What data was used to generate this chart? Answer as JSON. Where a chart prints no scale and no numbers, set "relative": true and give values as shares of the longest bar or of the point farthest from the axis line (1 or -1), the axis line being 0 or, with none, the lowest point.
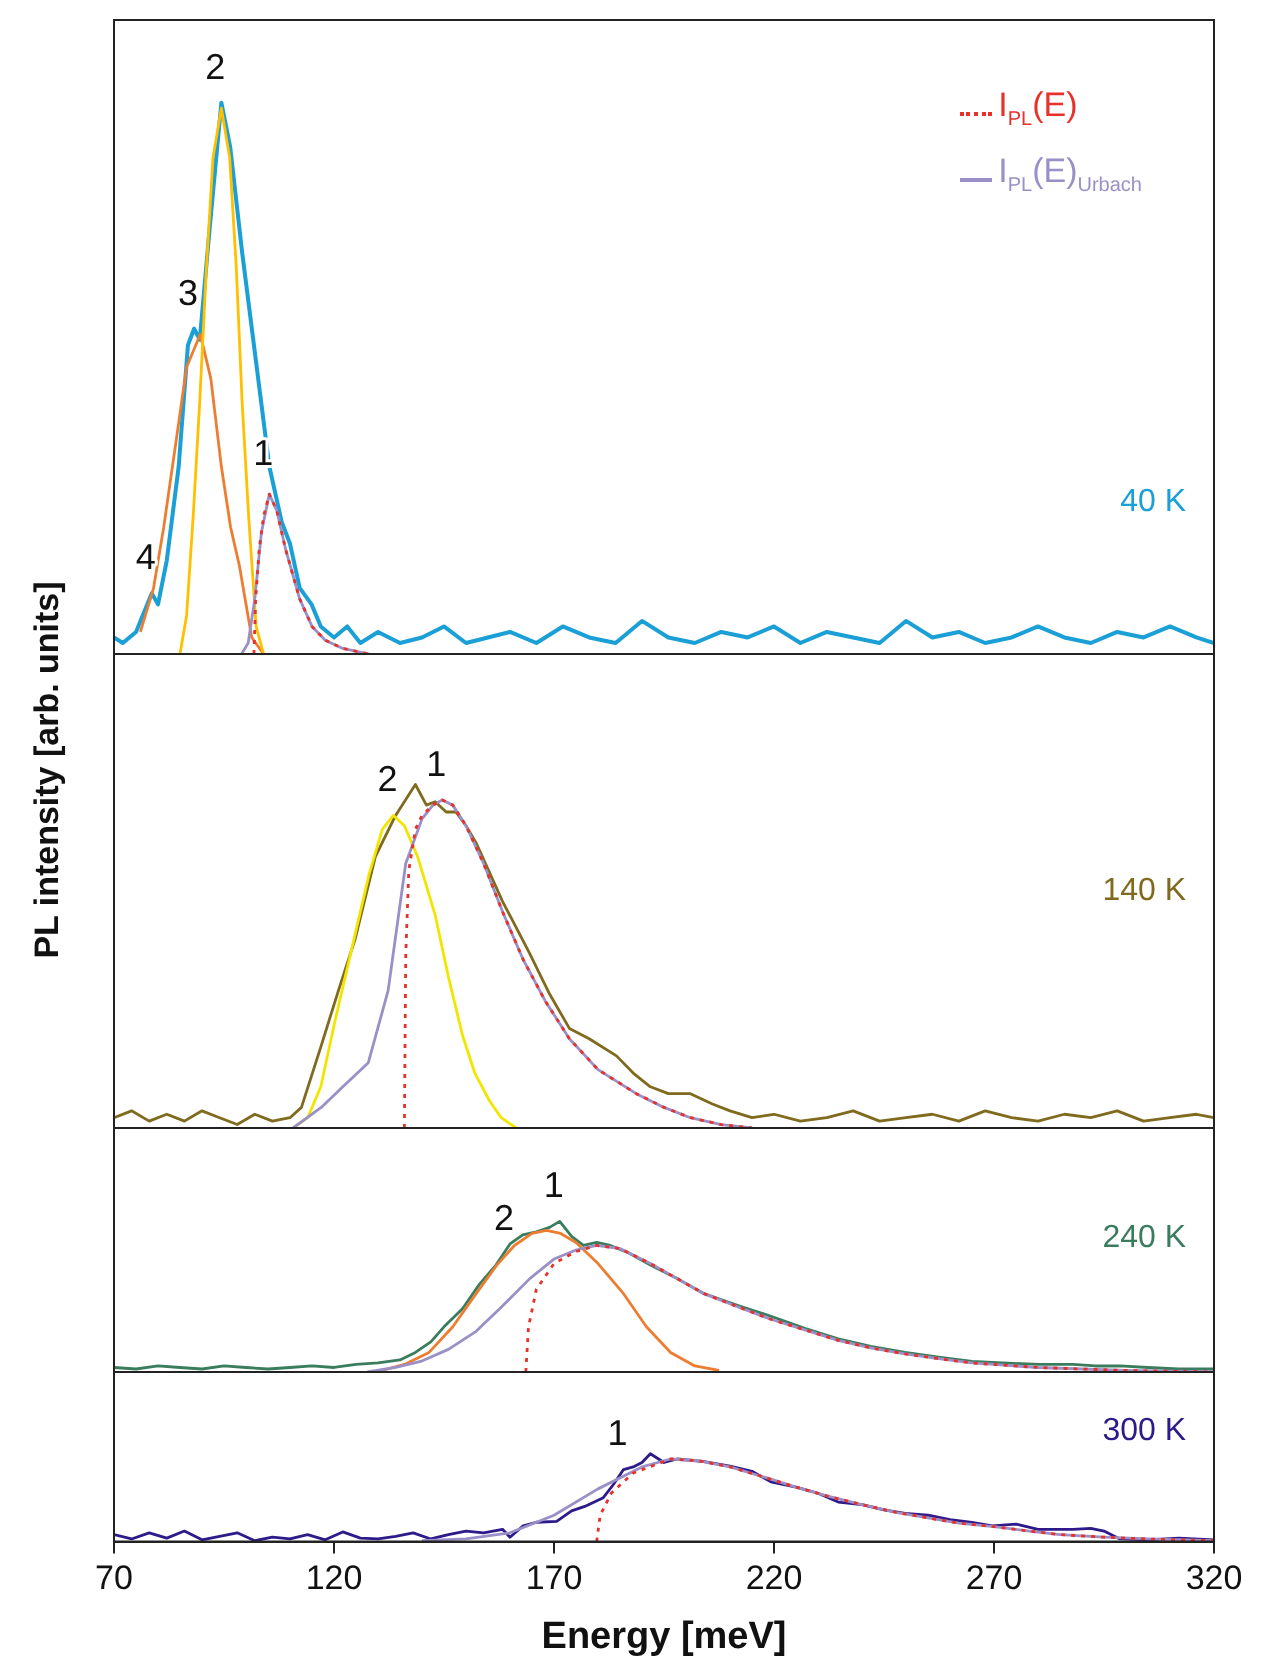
{
  "chart_data": [
    {
      "type": "line",
      "relative": true,
      "ylabel": "PL intensity [arb. units]",
      "xlim": [
        70,
        320
      ],
      "xticks": [
        70,
        120,
        170,
        220,
        270,
        320
      ],
      "tick_labels": false,
      "legend": "top right",
      "annotations": [
        {
          "text": "4",
          "x": 78.6,
          "y": 0.11
        },
        {
          "text": "3",
          "x": 88.2,
          "y": 0.59
        },
        {
          "text": "2",
          "x": 94.4,
          "y": 1.0
        },
        {
          "text": "1",
          "x": 105.3,
          "y": 0.3
        },
        "40 K"
      ],
      "series": [
        {
          "color": "#1a9fd6",
          "x": [
            70,
            72,
            75,
            78.6,
            80,
            82,
            84.7,
            86.8,
            88.2,
            89.5,
            91.6,
            94.4,
            96.4,
            99.1,
            102.6,
            105.3,
            108.1,
            110,
            112.2,
            114.9,
            117,
            120,
            123,
            126,
            130,
            135,
            140,
            145,
            150,
            155,
            160,
            166,
            172,
            178,
            184,
            190,
            196,
            202,
            208,
            214,
            220,
            226,
            232,
            238,
            244,
            250,
            256,
            262,
            268,
            274,
            280,
            286,
            292,
            298,
            304,
            310,
            316,
            320
          ],
          "values": [
            0.03,
            0.02,
            0.04,
            0.11,
            0.09,
            0.17,
            0.34,
            0.56,
            0.59,
            0.57,
            0.76,
            1.0,
            0.92,
            0.73,
            0.51,
            0.34,
            0.24,
            0.2,
            0.12,
            0.09,
            0.05,
            0.03,
            0.05,
            0.02,
            0.04,
            0.02,
            0.03,
            0.05,
            0.02,
            0.03,
            0.04,
            0.02,
            0.05,
            0.03,
            0.02,
            0.06,
            0.03,
            0.02,
            0.04,
            0.03,
            0.05,
            0.02,
            0.04,
            0.03,
            0.02,
            0.06,
            0.03,
            0.04,
            0.02,
            0.03,
            0.05,
            0.03,
            0.02,
            0.04,
            0.03,
            0.05,
            0.03,
            0.02
          ]
        },
        {
          "color": "#ed7d31",
          "x": [
            76,
            79,
            81.3,
            84,
            86.5,
            89.6,
            92,
            94.4,
            96.5,
            98.5,
            101.3,
            104
          ],
          "values": [
            0.04,
            0.12,
            0.23,
            0.38,
            0.52,
            0.58,
            0.5,
            0.34,
            0.23,
            0.16,
            0.03,
            0.0
          ]
        },
        {
          "color": "#ffc000",
          "x": [
            85,
            86.5,
            88,
            89.5,
            91,
            92.5,
            94.4,
            96.3,
            97.8,
            99.1,
            100.6,
            102.3,
            104
          ],
          "values": [
            0,
            0.07,
            0.25,
            0.46,
            0.7,
            0.9,
            0.99,
            0.9,
            0.7,
            0.46,
            0.25,
            0.05,
            0
          ]
        },
        {
          "name": "I$_{PL}$(E)$_{Urbach}$",
          "color": "#9b8fc8",
          "x": [
            99,
            100.5,
            102,
            103.5,
            105.3,
            107,
            109,
            112.2,
            115,
            118,
            122,
            128
          ],
          "values": [
            0,
            0.02,
            0.1,
            0.22,
            0.29,
            0.26,
            0.19,
            0.1,
            0.05,
            0.025,
            0.01,
            0
          ]
        },
        {
          "name": "I$_{PL}$(E)",
          "color": "#e8312a",
          "line_style": "dotted",
          "x": [
            101.8,
            102.2,
            103,
            104,
            105.3,
            107,
            109,
            112.2,
            115,
            118,
            122,
            128
          ],
          "values": [
            0,
            0.1,
            0.19,
            0.25,
            0.29,
            0.26,
            0.19,
            0.1,
            0.05,
            0.025,
            0.01,
            0
          ]
        }
      ]
    },
    {
      "type": "line",
      "relative": true,
      "xlim": [
        70,
        320
      ],
      "xticks": [
        70,
        120,
        170,
        220,
        270,
        320
      ],
      "tick_labels": false,
      "annotations": [
        {
          "text": "2",
          "x": 133.5,
          "y": 0.91
        },
        {
          "text": "1",
          "x": 144.6,
          "y": 0.955
        },
        "140 K"
      ],
      "series": [
        {
          "color": "#7f6a1e",
          "x": [
            70,
            74,
            78,
            82,
            86,
            90,
            94,
            98,
            102,
            106,
            110,
            112.6,
            117.1,
            121,
            124.8,
            129.4,
            134,
            138.5,
            141,
            143,
            145.5,
            147.7,
            150,
            152.3,
            158.3,
            164.4,
            169,
            173.5,
            178,
            184.2,
            188,
            191.9,
            196,
            201,
            206,
            210,
            215,
            220,
            226,
            232,
            238,
            244,
            250,
            256,
            262,
            268,
            274,
            280,
            286,
            292,
            298,
            304,
            310,
            316,
            320
          ],
          "values": [
            0.03,
            0.05,
            0.02,
            0.04,
            0.02,
            0.05,
            0.03,
            0.01,
            0.04,
            0.02,
            0.03,
            0.06,
            0.24,
            0.4,
            0.55,
            0.79,
            0.91,
            1.0,
            0.94,
            0.95,
            0.92,
            0.92,
            0.88,
            0.83,
            0.66,
            0.51,
            0.39,
            0.29,
            0.26,
            0.21,
            0.16,
            0.12,
            0.1,
            0.1,
            0.07,
            0.05,
            0.03,
            0.04,
            0.02,
            0.03,
            0.05,
            0.02,
            0.03,
            0.04,
            0.02,
            0.05,
            0.03,
            0.02,
            0.04,
            0.03,
            0.05,
            0.02,
            0.03,
            0.04,
            0.03
          ]
        },
        {
          "color": "#f2e600",
          "x": [
            110.7,
            114,
            117,
            120.2,
            124,
            128,
            131,
            133.5,
            136,
            139,
            143,
            146,
            149.2,
            152,
            155.3,
            158,
            161.4
          ],
          "values": [
            0,
            0.03,
            0.12,
            0.31,
            0.52,
            0.74,
            0.87,
            0.91,
            0.88,
            0.79,
            0.62,
            0.44,
            0.27,
            0.16,
            0.08,
            0.03,
            0
          ]
        },
        {
          "color": "#9b8fc8",
          "x": [
            110.7,
            117.1,
            122,
            127.8,
            132.3,
            136.3,
            140,
            142.5,
            144.6,
            147,
            150,
            154,
            158.3,
            163,
            168,
            173.5,
            180,
            188.7,
            195,
            201,
            208,
            215
          ],
          "values": [
            0,
            0.06,
            0.12,
            0.19,
            0.4,
            0.77,
            0.9,
            0.94,
            0.955,
            0.94,
            0.88,
            0.77,
            0.63,
            0.49,
            0.37,
            0.26,
            0.17,
            0.1,
            0.06,
            0.03,
            0.01,
            0
          ]
        },
        {
          "color": "#e8312a",
          "line_style": "dotted",
          "x": [
            136,
            136.3,
            137,
            138.5,
            140,
            142.5,
            144.6,
            147,
            150,
            154,
            158.3,
            163,
            168,
            173.5,
            180,
            188.7,
            195,
            201,
            208,
            215
          ],
          "values": [
            0,
            0.5,
            0.75,
            0.87,
            0.91,
            0.94,
            0.955,
            0.94,
            0.88,
            0.77,
            0.63,
            0.49,
            0.37,
            0.26,
            0.17,
            0.1,
            0.06,
            0.03,
            0.01,
            0
          ]
        }
      ]
    },
    {
      "type": "line",
      "relative": true,
      "xlim": [
        70,
        320
      ],
      "xticks": [
        70,
        120,
        170,
        220,
        270,
        320
      ],
      "tick_labels": false,
      "annotations": [
        {
          "text": "2",
          "x": 160,
          "y": 0.78
        },
        {
          "text": "1",
          "x": 171.3,
          "y": 1.0
        },
        "240 K"
      ],
      "series": [
        {
          "color": "#3a7d5e",
          "x": [
            70,
            75,
            80,
            85,
            90,
            95,
            100,
            105,
            110,
            115,
            120,
            125,
            130,
            135,
            138.5,
            142,
            145,
            149.2,
            153,
            156.8,
            160,
            162.9,
            166,
            169,
            171.3,
            174,
            176.7,
            179.7,
            182.8,
            187,
            191.9,
            198,
            204.1,
            212,
            219.3,
            227,
            234.6,
            242,
            249.8,
            257,
            265,
            272,
            280.3,
            288,
            293,
            298.6,
            305,
            312,
            320
          ],
          "values": [
            0.03,
            0.02,
            0.04,
            0.03,
            0.02,
            0.04,
            0.03,
            0.02,
            0.03,
            0.04,
            0.03,
            0.05,
            0.06,
            0.08,
            0.13,
            0.2,
            0.3,
            0.42,
            0.58,
            0.71,
            0.85,
            0.91,
            0.93,
            0.96,
            1.0,
            0.9,
            0.84,
            0.86,
            0.84,
            0.79,
            0.71,
            0.62,
            0.52,
            0.44,
            0.37,
            0.29,
            0.22,
            0.17,
            0.13,
            0.1,
            0.07,
            0.06,
            0.05,
            0.05,
            0.04,
            0.04,
            0.03,
            0.02,
            0.02
          ]
        },
        {
          "color": "#ed7d31",
          "x": [
            130.9,
            136,
            141.6,
            147,
            152.3,
            157,
            161,
            165,
            168.3,
            171.5,
            175,
            180,
            185.8,
            191,
            196.5,
            202,
            207.5
          ],
          "values": [
            0.01,
            0.05,
            0.13,
            0.3,
            0.52,
            0.71,
            0.84,
            0.92,
            0.94,
            0.92,
            0.86,
            0.72,
            0.52,
            0.3,
            0.13,
            0.04,
            0.01
          ]
        },
        {
          "color": "#9b8fc8",
          "x": [
            127.6,
            134,
            139.7,
            146,
            152.3,
            158,
            164.5,
            170,
            175,
            179.7,
            185,
            191.9,
            198,
            204.1,
            212,
            219.3,
            227,
            234.6,
            242,
            249.8,
            257,
            265,
            280,
            300,
            320
          ],
          "values": [
            0,
            0.03,
            0.07,
            0.15,
            0.27,
            0.43,
            0.62,
            0.75,
            0.81,
            0.84,
            0.82,
            0.72,
            0.62,
            0.52,
            0.43,
            0.35,
            0.28,
            0.21,
            0.16,
            0.12,
            0.09,
            0.06,
            0.03,
            0.01,
            0
          ]
        },
        {
          "color": "#e8312a",
          "line_style": "dotted",
          "x": [
            163.6,
            164.2,
            166,
            170,
            175,
            179.7,
            185,
            191.9,
            198,
            204.1,
            212,
            219.3,
            227,
            234.6,
            242,
            249.8,
            257,
            265,
            280,
            300,
            320
          ],
          "values": [
            0,
            0.3,
            0.55,
            0.72,
            0.8,
            0.84,
            0.82,
            0.72,
            0.62,
            0.52,
            0.43,
            0.35,
            0.28,
            0.21,
            0.16,
            0.12,
            0.09,
            0.06,
            0.03,
            0.01,
            0
          ]
        }
      ]
    },
    {
      "type": "line",
      "relative": true,
      "xlabel": "Energy [meV]",
      "xlim": [
        70,
        320
      ],
      "xticks": [
        70,
        120,
        170,
        220,
        270,
        320
      ],
      "tick_labels": "x",
      "annotations": [
        {
          "text": "1",
          "x": 185.8,
          "y": 0.82
        },
        "300 K"
      ],
      "series": [
        {
          "color": "#2e1a8a",
          "x": [
            70,
            74,
            78,
            82,
            86,
            90,
            94,
            98,
            102,
            106,
            110,
            114,
            118,
            122,
            126,
            130,
            134,
            138,
            142,
            146,
            150,
            154,
            158.3,
            160,
            163,
            166,
            170.6,
            174,
            177,
            181.2,
            183.5,
            185.8,
            188,
            190,
            191.9,
            195,
            198,
            204.1,
            210,
            215,
            219.3,
            225,
            230,
            234.6,
            240,
            245,
            249.8,
            255,
            260,
            265,
            269.6,
            275,
            280,
            287.9,
            292,
            295,
            298.6,
            305,
            312,
            320
          ],
          "values": [
            0.08,
            0.03,
            0.1,
            0.04,
            0.12,
            0.02,
            0.06,
            0.1,
            0.01,
            0.05,
            0.03,
            0.08,
            0.02,
            0.11,
            0.04,
            0.03,
            0.06,
            0.1,
            0.03,
            0.08,
            0.12,
            0.1,
            0.14,
            0.05,
            0.18,
            0.22,
            0.23,
            0.35,
            0.4,
            0.5,
            0.65,
            0.82,
            0.85,
            0.9,
            1.0,
            0.9,
            0.94,
            0.91,
            0.86,
            0.8,
            0.68,
            0.62,
            0.55,
            0.45,
            0.42,
            0.36,
            0.32,
            0.3,
            0.25,
            0.22,
            0.18,
            0.2,
            0.14,
            0.14,
            0.15,
            0.12,
            0.03,
            0.02,
            0.04,
            0.02
          ]
        },
        {
          "color": "#9b8fc8",
          "x": [
            140,
            150,
            160,
            170,
            180,
            190,
            196.5,
            203,
            210,
            218,
            225,
            232,
            240,
            248,
            255,
            262,
            270,
            278,
            285,
            295,
            305,
            320
          ],
          "values": [
            0.01,
            0.03,
            0.1,
            0.3,
            0.6,
            0.85,
            0.94,
            0.92,
            0.85,
            0.73,
            0.62,
            0.52,
            0.42,
            0.33,
            0.27,
            0.21,
            0.17,
            0.12,
            0.08,
            0.05,
            0.03,
            0.01
          ]
        },
        {
          "color": "#e8312a",
          "line_style": "dotted",
          "x": [
            179.7,
            180.5,
            183,
            188,
            196.5,
            203,
            210,
            218,
            225,
            232,
            240,
            248,
            255,
            262,
            270,
            278,
            285,
            295,
            305,
            320
          ],
          "values": [
            0,
            0.3,
            0.55,
            0.78,
            0.94,
            0.92,
            0.85,
            0.73,
            0.62,
            0.52,
            0.42,
            0.33,
            0.27,
            0.21,
            0.17,
            0.12,
            0.08,
            0.05,
            0.03,
            0.01
          ]
        }
      ]
    }
  ]
}
